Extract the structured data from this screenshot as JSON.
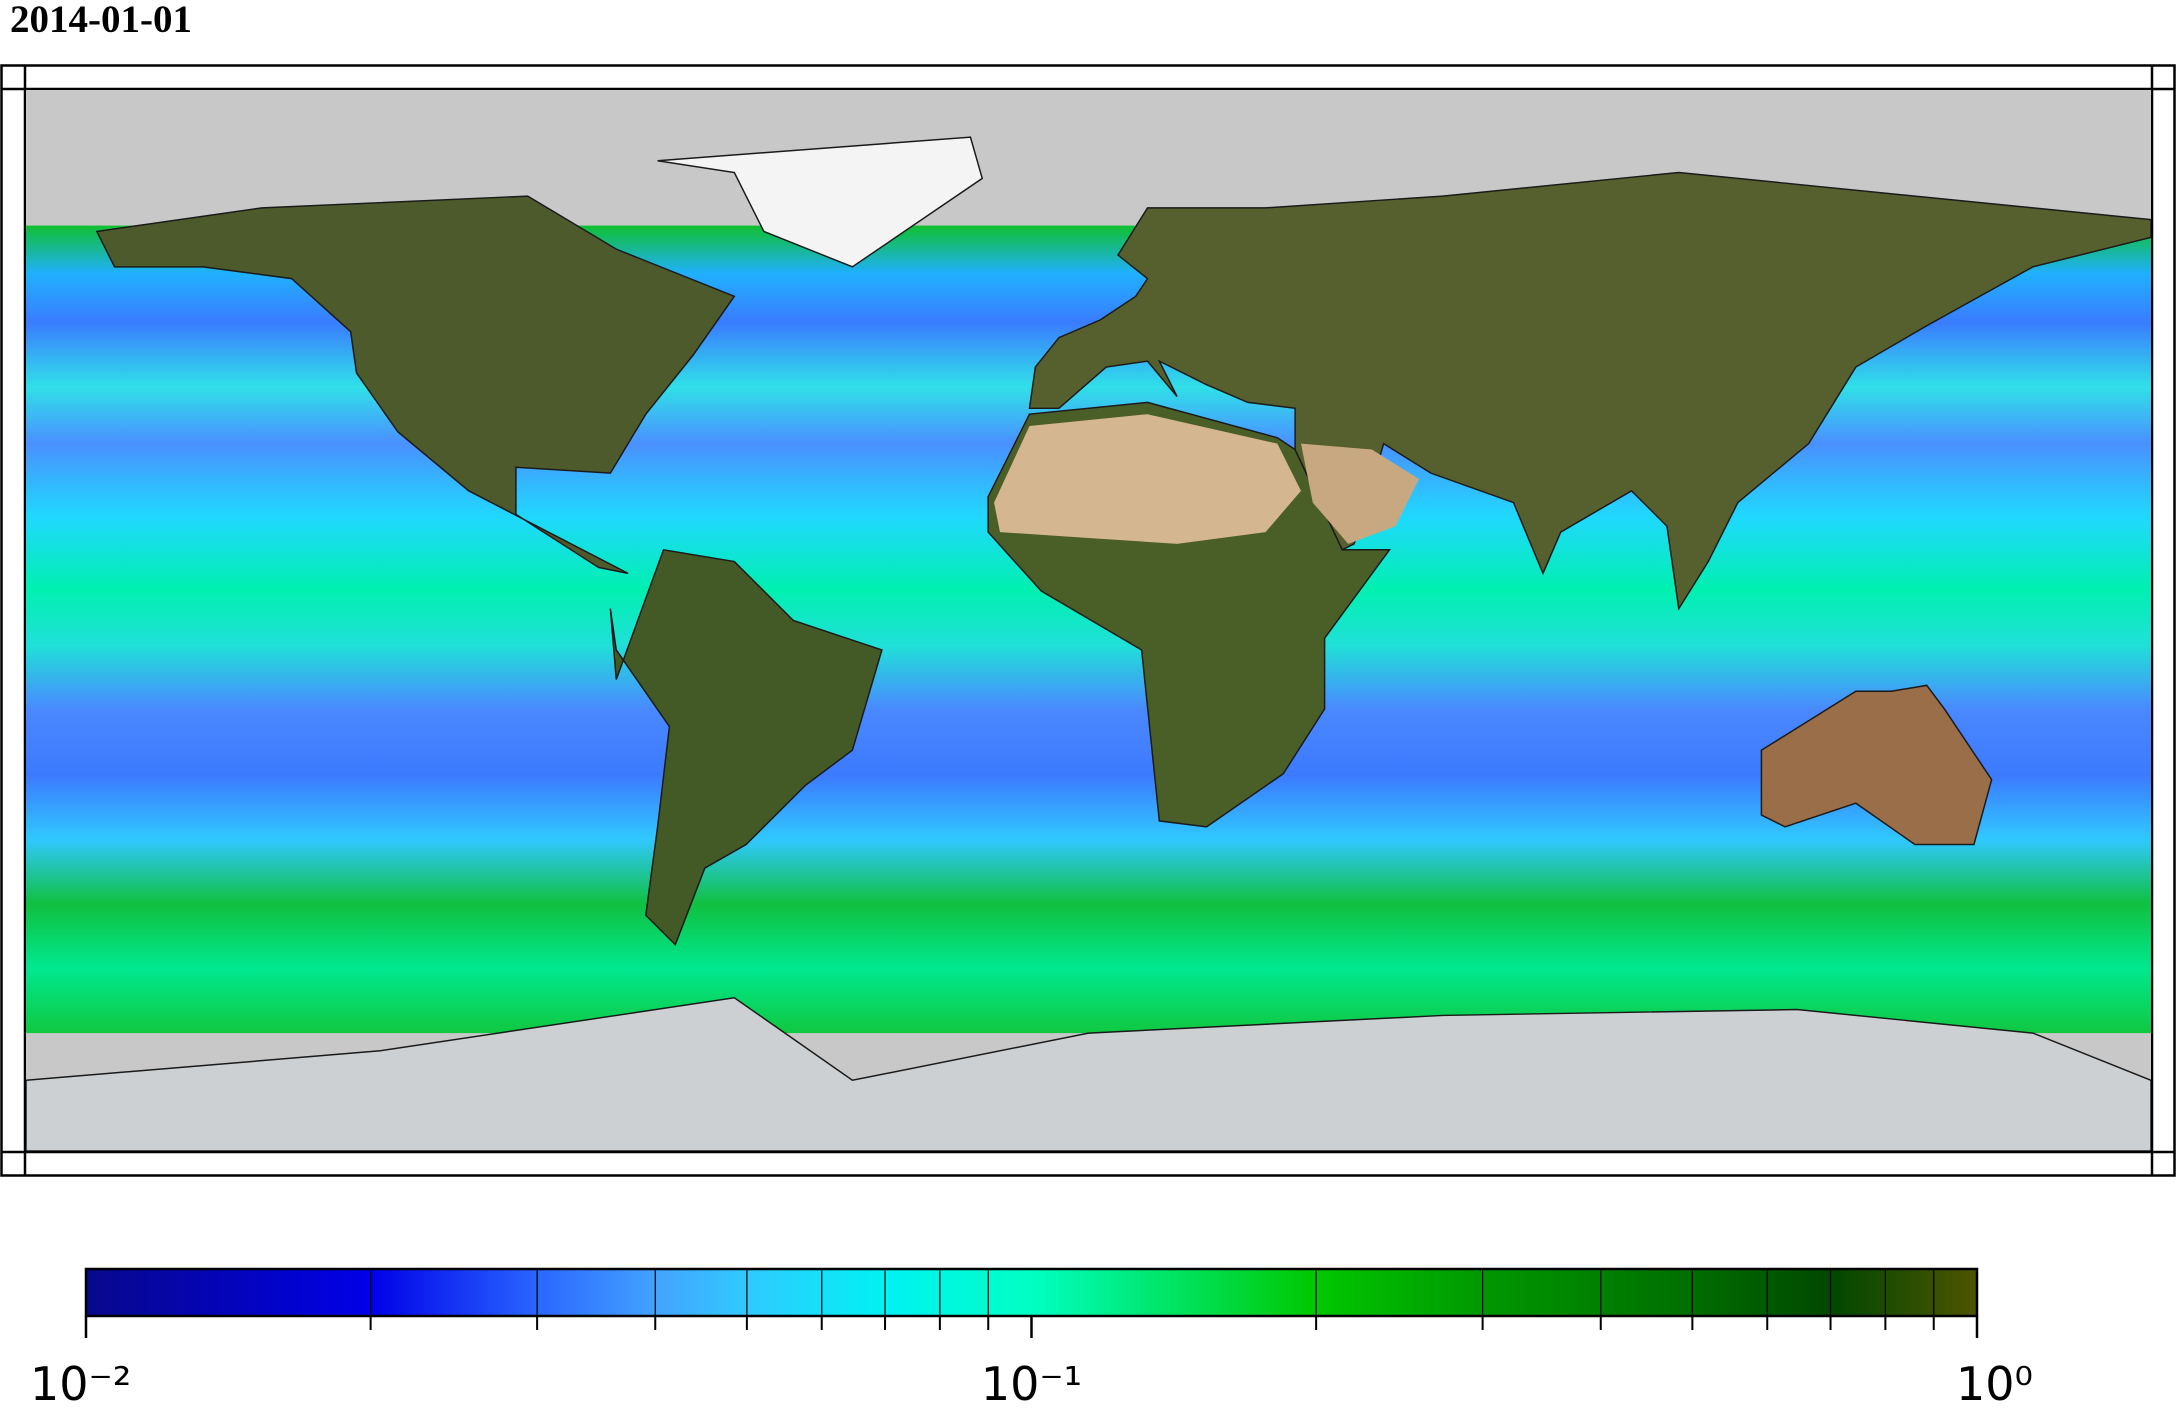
{
  "chart_data": {
    "type": "colorbar",
    "title": "2014-01-01",
    "scale": "log",
    "xlim": [
      0.01,
      1
    ],
    "xticks": [
      {
        "value": 0.01,
        "label": "10⁻²"
      },
      {
        "value": 0.1,
        "label": "10⁻¹"
      },
      {
        "value": 1,
        "label": "10⁰"
      }
    ],
    "minor_ticks": [
      0.02,
      0.03,
      0.04,
      0.05,
      0.06,
      0.07,
      0.08,
      0.09,
      0.2,
      0.3,
      0.4,
      0.5,
      0.6,
      0.7,
      0.8,
      0.9
    ],
    "colormap": [
      {
        "value": 0.01,
        "color": "#08088c"
      },
      {
        "value": 0.02,
        "color": "#0000e8"
      },
      {
        "value": 0.03,
        "color": "#2a66ff"
      },
      {
        "value": 0.04,
        "color": "#44a2ff"
      },
      {
        "value": 0.05,
        "color": "#30caff"
      },
      {
        "value": 0.07,
        "color": "#00f2f2"
      },
      {
        "value": 0.1,
        "color": "#00ffc4"
      },
      {
        "value": 0.2,
        "color": "#00c800"
      },
      {
        "value": 0.3,
        "color": "#009800"
      },
      {
        "value": 0.5,
        "color": "#006e00"
      },
      {
        "value": 0.7,
        "color": "#004800"
      },
      {
        "value": 1,
        "color": "#4e5400"
      }
    ]
  }
}
